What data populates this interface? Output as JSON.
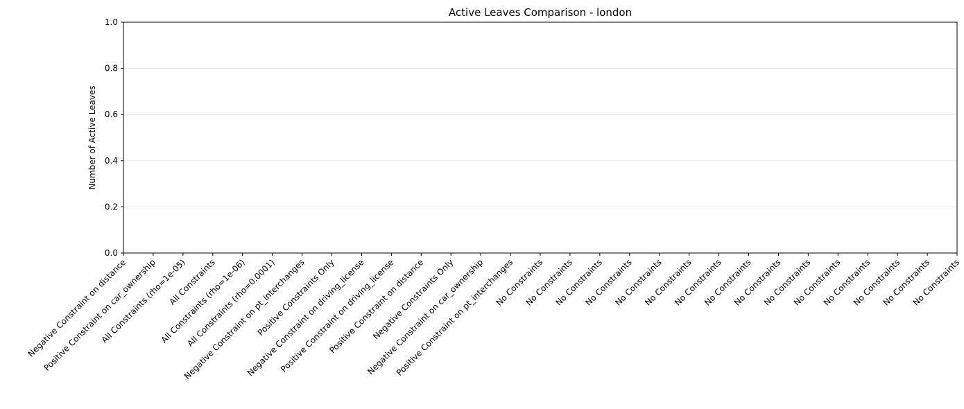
{
  "chart_data": {
    "type": "bar",
    "title": "Active Leaves Comparison - london",
    "xlabel": "",
    "ylabel": "Number of Active Leaves",
    "ylim": [
      0,
      1
    ],
    "yticks": [
      "0.0",
      "0.2",
      "0.4",
      "0.6",
      "0.8",
      "1.0"
    ],
    "grid": "y-axis, light gray",
    "categories": [
      "Negative Constraint on distance",
      "Positive Constraint on car_ownership",
      "All Constraints (rho=1e-05)",
      "All Constraints",
      "All Constraints (rho=1e-06)",
      "All Constraints (rho=0.0001)",
      "Negative Constraint on pt_interchanges",
      "Positive Constraints Only",
      "Negative Constraint on driving_license",
      "Positive Constraint on driving_license",
      "Positive Constraint on distance",
      "Negative Constraints Only",
      "Negative Constraint on car_ownership",
      "Positive Constraint on pt_interchanges",
      "No Constraints",
      "No Constraints",
      "No Constraints",
      "No Constraints",
      "No Constraints",
      "No Constraints",
      "No Constraints",
      "No Constraints",
      "No Constraints",
      "No Constraints",
      "No Constraints",
      "No Constraints",
      "No Constraints",
      "No Constraints",
      "No Constraints"
    ],
    "values": [
      0,
      0,
      0,
      0,
      0,
      0,
      0,
      0,
      0,
      0,
      0,
      0,
      0,
      0,
      0,
      0,
      0,
      0,
      0,
      0,
      0,
      0,
      0,
      0,
      0,
      0,
      0,
      0,
      0
    ]
  }
}
